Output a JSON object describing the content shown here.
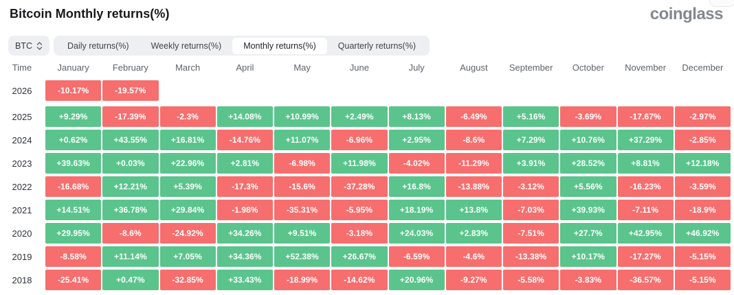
{
  "page": {
    "title": "Bitcoin Monthly returns(%)",
    "brand": "coinglass"
  },
  "controls": {
    "symbol_select": {
      "value": "BTC"
    },
    "tabs": [
      {
        "label": "Daily returns(%)",
        "active": false
      },
      {
        "label": "Weekly returns(%)",
        "active": false
      },
      {
        "label": "Monthly returns(%)",
        "active": true
      },
      {
        "label": "Quarterly returns(%)",
        "active": false
      }
    ]
  },
  "colors": {
    "positive_cell": "#5ac48c",
    "negative_cell": "#f76e6e",
    "cell_text": "#ffffff"
  },
  "table": {
    "type": "heatmap",
    "columns": [
      "Time",
      "January",
      "February",
      "March",
      "April",
      "May",
      "June",
      "July",
      "August",
      "September",
      "October",
      "November",
      "December"
    ],
    "rows": [
      {
        "year": "2026",
        "values": [
          "-10.17%",
          "-19.57%",
          "",
          "",
          "",
          "",
          "",
          "",
          "",
          "",
          "",
          ""
        ]
      },
      {
        "year": "2025",
        "values": [
          "+9.29%",
          "-17.39%",
          "-2.3%",
          "+14.08%",
          "+10.99%",
          "+2.49%",
          "+8.13%",
          "-6.49%",
          "+5.16%",
          "-3.69%",
          "-17.67%",
          "-2.97%"
        ]
      },
      {
        "year": "2024",
        "values": [
          "+0.62%",
          "+43.55%",
          "+16.81%",
          "-14.76%",
          "+11.07%",
          "-6.96%",
          "+2.95%",
          "-8.6%",
          "+7.29%",
          "+10.76%",
          "+37.29%",
          "-2.85%"
        ]
      },
      {
        "year": "2023",
        "values": [
          "+39.63%",
          "+0.03%",
          "+22.96%",
          "+2.81%",
          "-6.98%",
          "+11.98%",
          "-4.02%",
          "-11.29%",
          "+3.91%",
          "+28.52%",
          "+8.81%",
          "+12.18%"
        ]
      },
      {
        "year": "2022",
        "values": [
          "-16.68%",
          "+12.21%",
          "+5.39%",
          "-17.3%",
          "-15.6%",
          "-37.28%",
          "+16.8%",
          "-13.88%",
          "-3.12%",
          "+5.56%",
          "-16.23%",
          "-3.59%"
        ]
      },
      {
        "year": "2021",
        "values": [
          "+14.51%",
          "+36.78%",
          "+29.84%",
          "-1.98%",
          "-35.31%",
          "-5.95%",
          "+18.19%",
          "+13.8%",
          "-7.03%",
          "+39.93%",
          "-7.11%",
          "-18.9%"
        ]
      },
      {
        "year": "2020",
        "values": [
          "+29.95%",
          "-8.6%",
          "-24.92%",
          "+34.26%",
          "+9.51%",
          "-3.18%",
          "+24.03%",
          "+2.83%",
          "-7.51%",
          "+27.7%",
          "+42.95%",
          "+46.92%"
        ]
      },
      {
        "year": "2019",
        "values": [
          "-8.58%",
          "+11.14%",
          "+7.05%",
          "+34.36%",
          "+52.38%",
          "+26.67%",
          "-6.59%",
          "-4.6%",
          "-13.38%",
          "+10.17%",
          "-17.27%",
          "-5.15%"
        ]
      },
      {
        "year": "2018",
        "values": [
          "-25.41%",
          "+0.47%",
          "-32.85%",
          "+33.43%",
          "-18.99%",
          "-14.62%",
          "+20.96%",
          "-9.27%",
          "-5.58%",
          "-3.83%",
          "-36.57%",
          "-5.15%"
        ]
      }
    ]
  }
}
